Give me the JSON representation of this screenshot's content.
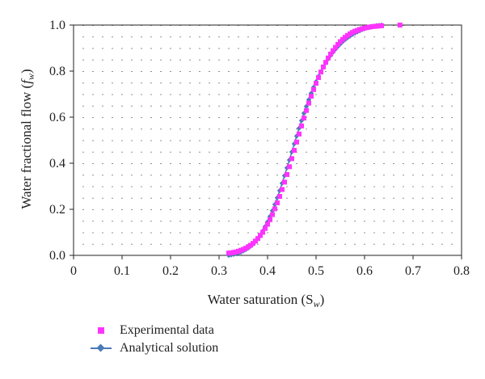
{
  "chart_data": {
    "type": "scatter",
    "xlabel": "Water saturation (S",
    "xlabel_sub": "w",
    "xlabel_end": ")",
    "ylabel": "Water fractional flow (",
    "ylabel_italic": "f",
    "ylabel_sub": "w",
    "ylabel_end": ")",
    "xlim": [
      0,
      0.8
    ],
    "ylim": [
      0,
      1.0
    ],
    "x_ticks": [
      0,
      0.1,
      0.2,
      0.3,
      0.4,
      0.5,
      0.6,
      0.7,
      0.8
    ],
    "x_tick_labels": [
      "0",
      "0.1",
      "0.2",
      "0.3",
      "0.4",
      "0.5",
      "0.6",
      "0.7",
      "0.8"
    ],
    "y_ticks": [
      0,
      0.2,
      0.4,
      0.6,
      0.8,
      1.0
    ],
    "y_tick_labels": [
      "0.0",
      "0.2",
      "0.4",
      "0.6",
      "0.8",
      "1.0"
    ],
    "grid": "dotted",
    "legend_position": "bottom-left",
    "series": [
      {
        "name": "Experimental data",
        "marker": "square",
        "color": "#ff33ff",
        "points": [
          [
            0.32,
            0.01
          ],
          [
            0.325,
            0.011
          ],
          [
            0.33,
            0.013
          ],
          [
            0.335,
            0.015
          ],
          [
            0.34,
            0.018
          ],
          [
            0.345,
            0.022
          ],
          [
            0.35,
            0.026
          ],
          [
            0.355,
            0.031
          ],
          [
            0.36,
            0.037
          ],
          [
            0.365,
            0.044
          ],
          [
            0.37,
            0.052
          ],
          [
            0.375,
            0.062
          ],
          [
            0.38,
            0.073
          ],
          [
            0.385,
            0.086
          ],
          [
            0.39,
            0.1
          ],
          [
            0.395,
            0.117
          ],
          [
            0.4,
            0.135
          ],
          [
            0.405,
            0.155
          ],
          [
            0.41,
            0.177
          ],
          [
            0.415,
            0.202
          ],
          [
            0.42,
            0.228
          ],
          [
            0.425,
            0.256
          ],
          [
            0.43,
            0.286
          ],
          [
            0.435,
            0.318
          ],
          [
            0.44,
            0.351
          ],
          [
            0.445,
            0.385
          ],
          [
            0.45,
            0.42
          ],
          [
            0.455,
            0.456
          ],
          [
            0.46,
            0.492
          ],
          [
            0.465,
            0.527
          ],
          [
            0.47,
            0.562
          ],
          [
            0.475,
            0.596
          ],
          [
            0.48,
            0.629
          ],
          [
            0.485,
            0.661
          ],
          [
            0.49,
            0.691
          ],
          [
            0.495,
            0.72
          ],
          [
            0.5,
            0.747
          ],
          [
            0.505,
            0.772
          ],
          [
            0.51,
            0.796
          ],
          [
            0.515,
            0.818
          ],
          [
            0.52,
            0.838
          ],
          [
            0.525,
            0.857
          ],
          [
            0.53,
            0.874
          ],
          [
            0.535,
            0.889
          ],
          [
            0.54,
            0.903
          ],
          [
            0.545,
            0.916
          ],
          [
            0.55,
            0.928
          ],
          [
            0.555,
            0.938
          ],
          [
            0.56,
            0.947
          ],
          [
            0.565,
            0.955
          ],
          [
            0.57,
            0.962
          ],
          [
            0.575,
            0.968
          ],
          [
            0.58,
            0.973
          ],
          [
            0.585,
            0.977
          ],
          [
            0.59,
            0.981
          ],
          [
            0.595,
            0.984
          ],
          [
            0.6,
            0.987
          ],
          [
            0.605,
            0.989
          ],
          [
            0.61,
            0.991
          ],
          [
            0.615,
            0.993
          ],
          [
            0.62,
            0.994
          ],
          [
            0.625,
            0.995
          ],
          [
            0.63,
            0.996
          ],
          [
            0.635,
            0.997
          ],
          [
            0.673,
            1.0
          ]
        ]
      },
      {
        "name": "Analytical solution",
        "marker": "diamond",
        "line": true,
        "color": "#4a7ab8",
        "points": [
          [
            0.32,
            0.0
          ],
          [
            0.325,
            0.002
          ],
          [
            0.33,
            0.004
          ],
          [
            0.335,
            0.007
          ],
          [
            0.34,
            0.01
          ],
          [
            0.345,
            0.014
          ],
          [
            0.35,
            0.019
          ],
          [
            0.355,
            0.025
          ],
          [
            0.36,
            0.032
          ],
          [
            0.365,
            0.04
          ],
          [
            0.37,
            0.05
          ],
          [
            0.375,
            0.061
          ],
          [
            0.38,
            0.074
          ],
          [
            0.385,
            0.089
          ],
          [
            0.39,
            0.106
          ],
          [
            0.395,
            0.125
          ],
          [
            0.4,
            0.146
          ],
          [
            0.405,
            0.169
          ],
          [
            0.41,
            0.194
          ],
          [
            0.415,
            0.221
          ],
          [
            0.42,
            0.25
          ],
          [
            0.425,
            0.281
          ],
          [
            0.43,
            0.313
          ],
          [
            0.435,
            0.346
          ],
          [
            0.44,
            0.38
          ],
          [
            0.445,
            0.414
          ],
          [
            0.45,
            0.449
          ],
          [
            0.455,
            0.484
          ],
          [
            0.46,
            0.518
          ],
          [
            0.465,
            0.552
          ],
          [
            0.47,
            0.585
          ],
          [
            0.475,
            0.617
          ],
          [
            0.48,
            0.647
          ],
          [
            0.485,
            0.676
          ],
          [
            0.49,
            0.704
          ],
          [
            0.495,
            0.73
          ],
          [
            0.5,
            0.754
          ],
          [
            0.505,
            0.777
          ],
          [
            0.51,
            0.798
          ],
          [
            0.515,
            0.818
          ],
          [
            0.52,
            0.836
          ],
          [
            0.525,
            0.853
          ],
          [
            0.53,
            0.868
          ],
          [
            0.535,
            0.882
          ],
          [
            0.54,
            0.895
          ],
          [
            0.545,
            0.907
          ],
          [
            0.55,
            0.918
          ],
          [
            0.555,
            0.928
          ],
          [
            0.56,
            0.937
          ],
          [
            0.565,
            0.945
          ],
          [
            0.57,
            0.952
          ],
          [
            0.575,
            0.959
          ],
          [
            0.58,
            0.965
          ],
          [
            0.585,
            0.97
          ],
          [
            0.59,
            0.975
          ],
          [
            0.595,
            0.98
          ],
          [
            0.6,
            0.984
          ],
          [
            0.605,
            0.988
          ],
          [
            0.61,
            0.991
          ],
          [
            0.615,
            0.994
          ],
          [
            0.62,
            0.996
          ],
          [
            0.625,
            0.998
          ],
          [
            0.63,
            0.999
          ],
          [
            0.635,
            1.0
          ]
        ]
      }
    ]
  }
}
